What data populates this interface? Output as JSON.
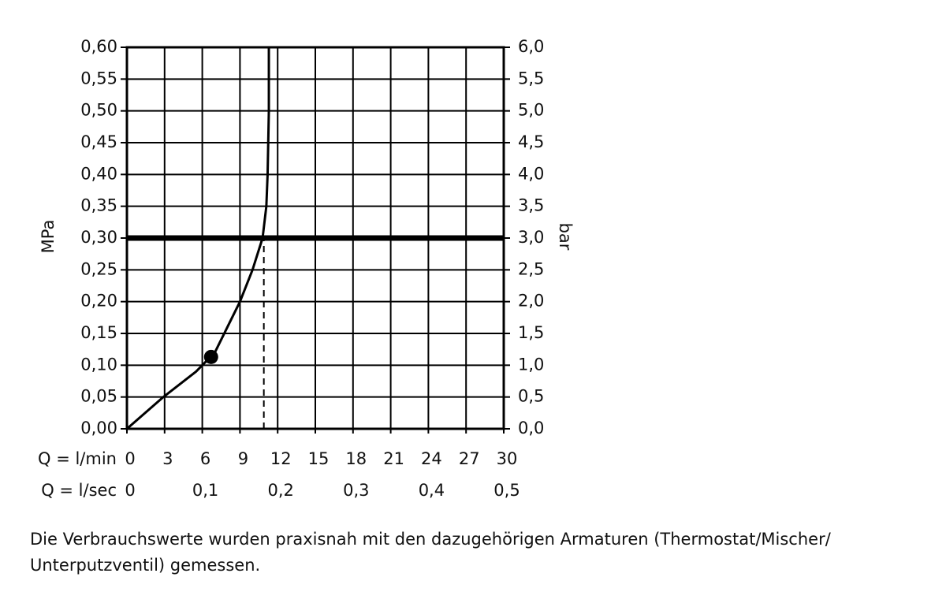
{
  "chart_data": {
    "type": "line",
    "ylabel": "MPa",
    "y2label": "bar",
    "xlabel": "Q = l/min",
    "x2label": "Q = l/sec",
    "xlim": [
      0,
      30
    ],
    "xticks": [
      0,
      3,
      6,
      9,
      12,
      15,
      18,
      21,
      24,
      27,
      30
    ],
    "x2lim": [
      0,
      0.5
    ],
    "x2ticks": [
      0,
      {
        "value": 0.1,
        "label": "0,1"
      },
      {
        "value": 0.2,
        "label": "0,2"
      },
      {
        "value": 0.3,
        "label": "0,3"
      },
      {
        "value": 0.4,
        "label": "0,4"
      },
      {
        "value": 0.5,
        "label": "0,5"
      }
    ],
    "ylim": [
      0,
      0.6
    ],
    "yticks": [
      {
        "value": 0,
        "label": "0,00"
      },
      {
        "value": 0.05,
        "label": "0,05"
      },
      {
        "value": 0.1,
        "label": "0,10"
      },
      {
        "value": 0.15,
        "label": "0,15"
      },
      {
        "value": 0.2,
        "label": "0,20"
      },
      {
        "value": 0.25,
        "label": "0,25"
      },
      {
        "value": 0.3,
        "label": "0,30"
      },
      {
        "value": 0.35,
        "label": "0,35"
      },
      {
        "value": 0.4,
        "label": "0,40"
      },
      {
        "value": 0.45,
        "label": "0,45"
      },
      {
        "value": 0.5,
        "label": "0,50"
      },
      {
        "value": 0.55,
        "label": "0,55"
      },
      {
        "value": 0.6,
        "label": "0,60"
      }
    ],
    "y2lim": [
      0,
      6
    ],
    "y2ticks": [
      {
        "value": 0,
        "label": "0,0"
      },
      {
        "value": 0.5,
        "label": "0,5"
      },
      {
        "value": 1,
        "label": "1,0"
      },
      {
        "value": 1.5,
        "label": "1,5"
      },
      {
        "value": 2,
        "label": "2,0"
      },
      {
        "value": 2.5,
        "label": "2,5"
      },
      {
        "value": 3,
        "label": "3,0"
      },
      {
        "value": 3.5,
        "label": "3,5"
      },
      {
        "value": 4,
        "label": "4,0"
      },
      {
        "value": 4.5,
        "label": "4,5"
      },
      {
        "value": 5,
        "label": "5,0"
      },
      {
        "value": 5.5,
        "label": "5,5"
      },
      {
        "value": 6,
        "label": "6,0"
      }
    ],
    "grid": true,
    "series": [
      {
        "color": "#000000",
        "x": [
          0,
          2.9,
          5.5,
          6.5,
          7,
          8,
          9,
          10,
          10.8,
          11.1,
          11.2,
          11.3,
          11.3
        ],
        "values": [
          0,
          0.05,
          0.09,
          0.11,
          0.12,
          0.16,
          0.2,
          0.25,
          0.3,
          0.35,
          0.4,
          0.5,
          0.6
        ]
      }
    ],
    "marker": {
      "x": 6.7,
      "y": 0.113,
      "color": "#000000"
    },
    "hline": {
      "y": 0.3,
      "color": "#000000"
    },
    "vline": {
      "x": 10.9,
      "ymin": 0,
      "ymax": 0.3,
      "color": "#000000"
    },
    "note": [
      "Die Verbrauchswerte wurden praxisnah mit den dazugehörigen Armaturen (Thermostat/Mischer/",
      "Unterputzventil) gemessen."
    ]
  }
}
